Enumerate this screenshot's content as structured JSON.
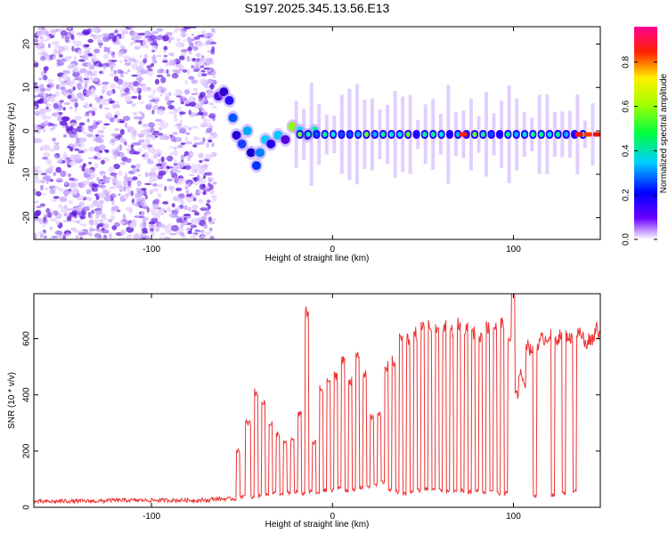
{
  "title": "S197.2025.345.13.56.E13",
  "chart_data": [
    {
      "type": "heatmap",
      "xlabel": "Height of straight line (km)",
      "ylabel": "Frequency (Hz)",
      "xlim": [
        -165,
        148
      ],
      "ylim": [
        -25,
        24
      ],
      "xticks": [
        -100,
        0,
        100
      ],
      "yticks": [
        20,
        10,
        0,
        -10,
        -20
      ],
      "noise_region_x": [
        -165,
        -65
      ],
      "tone_start_x": -65,
      "tone_frequency_hz": -0.8,
      "colorbar": {
        "label": "Normalized spectral amplitude",
        "ticks": [
          0.0,
          0.2,
          0.4,
          0.6,
          0.8
        ],
        "range": [
          0,
          0.96
        ]
      }
    },
    {
      "type": "line",
      "xlabel": "Height of straight line (km)",
      "ylabel": "SNR (10 * v/v)",
      "xlim": [
        -165,
        148
      ],
      "ylim": [
        0,
        760
      ],
      "xticks": [
        -100,
        0,
        100
      ],
      "yticks": [
        0,
        200,
        400,
        600
      ],
      "color": "#ee3333",
      "series": [
        {
          "name": "SNR",
          "x": [
            -165,
            -140,
            -110,
            -80,
            -54,
            -52,
            -50,
            -46,
            -44,
            -42,
            -40,
            -38,
            -36,
            -34,
            -32,
            -30,
            -28,
            -26,
            -24,
            -22,
            -20,
            -18,
            -16,
            -14,
            -12,
            -10,
            -8,
            -6,
            -4,
            -2,
            0,
            2,
            4,
            6,
            8,
            10,
            12,
            14,
            16,
            18,
            20,
            22,
            24,
            26,
            28,
            30,
            32,
            34,
            36,
            38,
            40,
            42,
            44,
            46,
            48,
            50,
            52,
            54,
            56,
            58,
            60,
            62,
            64,
            66,
            68,
            70,
            72,
            74,
            76,
            78,
            80,
            82,
            84,
            86,
            88,
            90,
            92,
            94,
            96,
            98,
            100,
            102,
            104,
            106,
            108,
            110,
            112,
            114,
            116,
            118,
            120,
            122,
            124,
            126,
            128,
            130,
            132,
            134,
            136,
            138,
            140,
            142,
            144,
            146,
            148
          ],
          "values": [
            20,
            22,
            25,
            25,
            30,
            200,
            40,
            300,
            35,
            410,
            40,
            380,
            45,
            300,
            50,
            260,
            45,
            230,
            50,
            240,
            55,
            330,
            50,
            700,
            55,
            230,
            50,
            420,
            60,
            450,
            60,
            470,
            70,
            520,
            60,
            450,
            60,
            540,
            70,
            470,
            75,
            320,
            80,
            330,
            90,
            500,
            60,
            520,
            55,
            600,
            50,
            600,
            55,
            620,
            60,
            640,
            65,
            640,
            60,
            640,
            60,
            640,
            55,
            630,
            55,
            650,
            60,
            640,
            55,
            620,
            60,
            610,
            55,
            640,
            60,
            640,
            50,
            650,
            50,
            600,
            760,
            400,
            480,
            440,
            580,
            560,
            40,
            580,
            600,
            600,
            610,
            40,
            600,
            610,
            50,
            610,
            600,
            60,
            620,
            610,
            580,
            600,
            600,
            640,
            620
          ]
        }
      ]
    }
  ]
}
